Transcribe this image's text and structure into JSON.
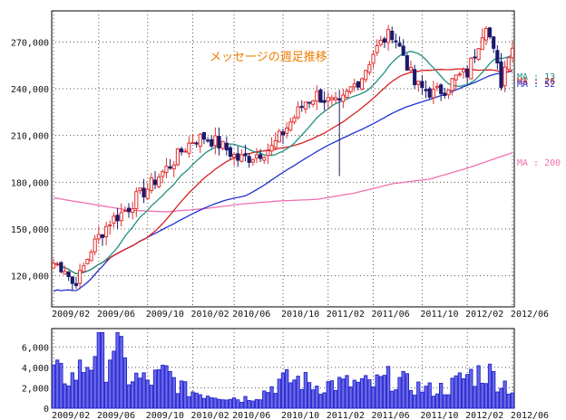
{
  "chart_data": [
    {
      "type": "candlestick",
      "title": "メッセージの週足推移",
      "x_ticks": [
        "2009/02",
        "2009/06",
        "2009/10",
        "2010/02",
        "2010/06",
        "2010/10",
        "2011/02",
        "2011/06",
        "2011/10",
        "2012/02",
        "2012/06"
      ],
      "y_ticks": [
        "120,000",
        "150,000",
        "180,000",
        "210,000",
        "240,000",
        "270,000"
      ],
      "y_tick_values": [
        120000,
        150000,
        180000,
        210000,
        240000,
        270000
      ],
      "ylim": [
        100000,
        290000
      ],
      "grid": true,
      "up_color": "#e03030",
      "down_color": "#1a1a6e",
      "price_anchors": [
        [
          0,
          128000
        ],
        [
          3,
          125000
        ],
        [
          5,
          115000
        ],
        [
          7,
          120000
        ],
        [
          10,
          137000
        ],
        [
          12,
          145000
        ],
        [
          15,
          155000
        ],
        [
          18,
          160000
        ],
        [
          20,
          164000
        ],
        [
          22,
          170000
        ],
        [
          25,
          176000
        ],
        [
          28,
          184000
        ],
        [
          31,
          191000
        ],
        [
          34,
          200000
        ],
        [
          37,
          207000
        ],
        [
          40,
          209000
        ],
        [
          43,
          206000
        ],
        [
          46,
          201000
        ],
        [
          49,
          195000
        ],
        [
          52,
          196000
        ],
        [
          55,
          199000
        ],
        [
          58,
          202000
        ],
        [
          61,
          212000
        ],
        [
          64,
          222000
        ],
        [
          67,
          232000
        ],
        [
          70,
          236000
        ],
        [
          73,
          232000
        ],
        [
          76,
          229000
        ],
        [
          79,
          240000
        ],
        [
          82,
          248000
        ],
        [
          85,
          263000
        ],
        [
          88,
          272000
        ],
        [
          90,
          276000
        ],
        [
          93,
          262000
        ],
        [
          96,
          243000
        ],
        [
          98,
          240000
        ],
        [
          101,
          237000
        ],
        [
          104,
          240000
        ],
        [
          107,
          247000
        ],
        [
          110,
          250000
        ],
        [
          113,
          270000
        ],
        [
          115,
          283000
        ],
        [
          117,
          263000
        ],
        [
          119,
          244000
        ],
        [
          121,
          264000
        ],
        [
          122,
          268000
        ]
      ],
      "ma_series": [
        {
          "name": "MA : 13",
          "color": "#209080",
          "period": 13
        },
        {
          "name": "MA : 26",
          "color": "#d82020",
          "period": 26
        },
        {
          "name": "MA : 52",
          "color": "#2030d0",
          "period": 52
        },
        {
          "name": "MA : 200",
          "color": "#f070b0",
          "period": 200
        }
      ],
      "ma200_anchors": [
        [
          0,
          170000
        ],
        [
          10,
          166000
        ],
        [
          20,
          162000
        ],
        [
          30,
          161000
        ],
        [
          40,
          163000
        ],
        [
          50,
          166000
        ],
        [
          60,
          168000
        ],
        [
          70,
          169000
        ],
        [
          80,
          173000
        ],
        [
          90,
          179000
        ],
        [
          100,
          182000
        ],
        [
          110,
          189000
        ],
        [
          122,
          199000
        ]
      ],
      "ma_labels": {
        "ma13": "MA : 13",
        "ma26": "MA : 26",
        "ma52": "MA : 52",
        "ma200": "MA : 200"
      }
    },
    {
      "type": "bar",
      "series_name": "volume",
      "x_ticks": [
        "2009/02",
        "2009/06",
        "2009/10",
        "2010/02",
        "2010/06",
        "2010/10",
        "2011/02",
        "2011/06",
        "2011/10",
        "2012/02",
        "2012/06"
      ],
      "y_ticks": [
        "0",
        "2,000",
        "4,000",
        "6,000"
      ],
      "y_tick_values": [
        0,
        2000,
        4000,
        6000
      ],
      "ylim": [
        0,
        7800
      ],
      "bar_color": "#2a2ad0",
      "volume_anchors": [
        [
          0,
          3400
        ],
        [
          5,
          3000
        ],
        [
          10,
          4800
        ],
        [
          12,
          7400
        ],
        [
          14,
          4600
        ],
        [
          16,
          6700
        ],
        [
          20,
          3100
        ],
        [
          25,
          2600
        ],
        [
          30,
          3400
        ],
        [
          35,
          1800
        ],
        [
          40,
          1400
        ],
        [
          45,
          1200
        ],
        [
          50,
          900
        ],
        [
          55,
          1300
        ],
        [
          60,
          2600
        ],
        [
          65,
          2800
        ],
        [
          70,
          2200
        ],
        [
          75,
          2400
        ],
        [
          80,
          2400
        ],
        [
          85,
          2300
        ],
        [
          90,
          3000
        ],
        [
          95,
          2200
        ],
        [
          100,
          1800
        ],
        [
          105,
          2000
        ],
        [
          110,
          3200
        ],
        [
          115,
          3600
        ],
        [
          120,
          2400
        ],
        [
          122,
          1800
        ]
      ]
    }
  ]
}
